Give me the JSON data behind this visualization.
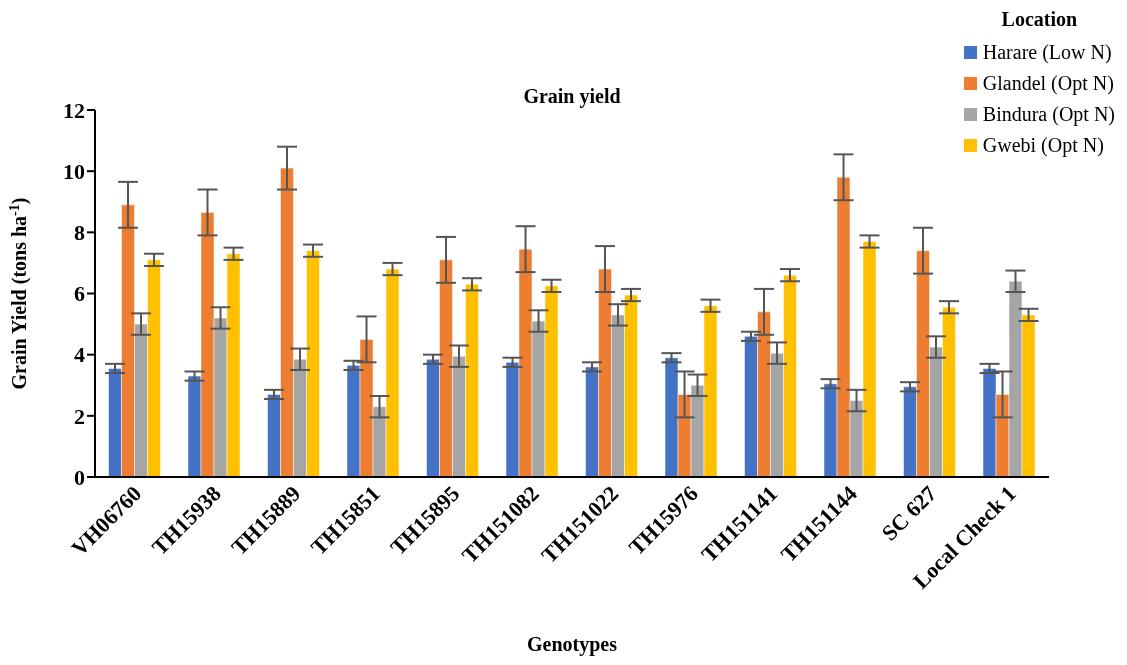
{
  "chart_data": {
    "type": "bar",
    "title": "Grain yield",
    "xlabel": "Genotypes",
    "ylabel": "Grain Yield (tons ha$^{-1}$)",
    "legend_title": "Location",
    "legend": "top right",
    "categories": [
      "VH06760",
      "TH15938",
      "TH15889",
      "TH15851",
      "TH15895",
      "TH151082",
      "TH151022",
      "TH15976",
      "TH151141",
      "TH151144",
      "SC 627",
      "Local Check 1"
    ],
    "ylim": [
      0,
      12
    ],
    "yticks": [
      0,
      2,
      4,
      6,
      8,
      10,
      12
    ],
    "series": [
      {
        "name": "Harare (Low N)",
        "color": "#4472c4",
        "values": [
          3.55,
          3.3,
          2.7,
          3.65,
          3.85,
          3.75,
          3.6,
          3.9,
          4.6,
          3.05,
          2.95,
          3.55
        ],
        "errors": [
          0.15,
          0.15,
          0.15,
          0.15,
          0.15,
          0.15,
          0.15,
          0.15,
          0.15,
          0.15,
          0.15,
          0.15
        ]
      },
      {
        "name": "Glandel (Opt N)",
        "color": "#ed7d31",
        "values": [
          8.9,
          8.65,
          10.1,
          4.5,
          7.1,
          7.45,
          6.8,
          2.7,
          5.4,
          9.8,
          7.4,
          2.7
        ],
        "errors": [
          0.75,
          0.75,
          0.7,
          0.75,
          0.75,
          0.75,
          0.75,
          0.75,
          0.75,
          0.75,
          0.75,
          0.75
        ]
      },
      {
        "name": "Bindura (Opt N)",
        "color": "#a5a5a5",
        "values": [
          5.0,
          5.2,
          3.85,
          2.3,
          3.95,
          5.1,
          5.3,
          3.0,
          4.05,
          2.5,
          4.25,
          6.4
        ],
        "errors": [
          0.35,
          0.35,
          0.35,
          0.35,
          0.35,
          0.35,
          0.35,
          0.35,
          0.35,
          0.35,
          0.35,
          0.35
        ]
      },
      {
        "name": "Gwebi (Opt N)",
        "color": "#ffc000",
        "values": [
          7.1,
          7.3,
          7.4,
          6.8,
          6.3,
          6.25,
          5.95,
          5.6,
          6.6,
          7.7,
          5.55,
          5.3
        ],
        "errors": [
          0.2,
          0.2,
          0.2,
          0.2,
          0.2,
          0.2,
          0.2,
          0.2,
          0.2,
          0.2,
          0.2,
          0.2
        ]
      }
    ]
  }
}
